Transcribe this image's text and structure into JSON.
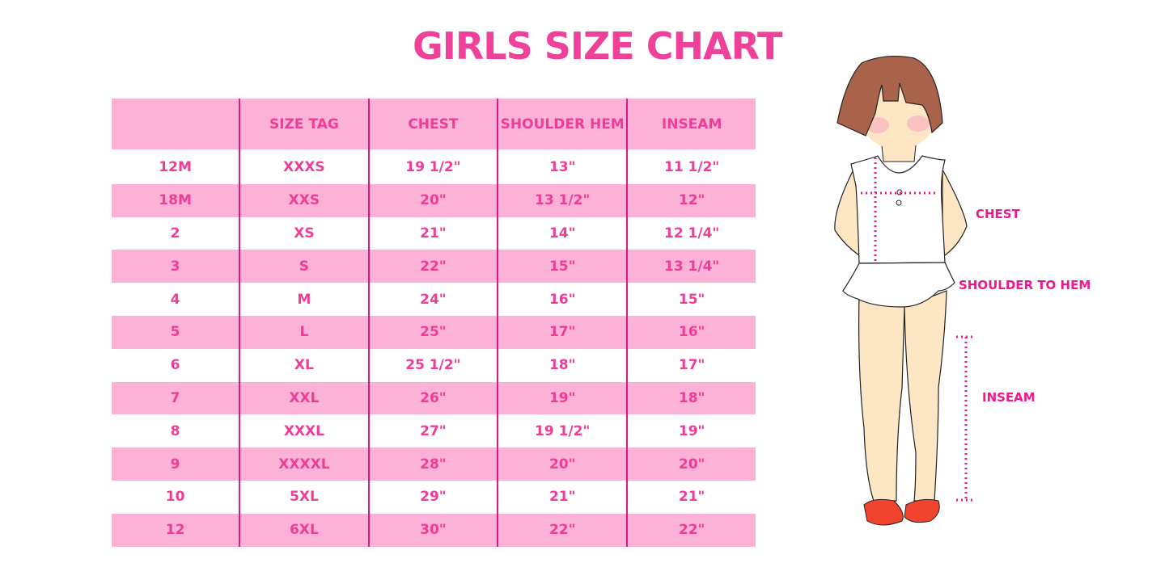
{
  "title": "GIRLS SIZE CHART",
  "table": {
    "headers": [
      "",
      "SIZE TAG",
      "CHEST",
      "SHOULDER HEM",
      "INSEAM"
    ],
    "rows": [
      [
        "12M",
        "XXXS",
        "19 1/2\"",
        "13\"",
        "11 1/2\""
      ],
      [
        "18M",
        "XXS",
        "20\"",
        "13 1/2\"",
        "12\""
      ],
      [
        "2",
        "XS",
        "21\"",
        "14\"",
        "12 1/4\""
      ],
      [
        "3",
        "S",
        "22\"",
        "15\"",
        "13 1/4\""
      ],
      [
        "4",
        "M",
        "24\"",
        "16\"",
        "15\""
      ],
      [
        "5",
        "L",
        "25\"",
        "17\"",
        "16\""
      ],
      [
        "6",
        "XL",
        "25 1/2\"",
        "18\"",
        "17\""
      ],
      [
        "7",
        "XXL",
        "26\"",
        "19\"",
        "18\""
      ],
      [
        "8",
        "XXXL",
        "27\"",
        "19 1/2\"",
        "19\""
      ],
      [
        "9",
        "XXXXL",
        "28\"",
        "20\"",
        "20\""
      ],
      [
        "10",
        "5XL",
        "29\"",
        "21\"",
        "21\""
      ],
      [
        "12",
        "6XL",
        "30\"",
        "22\"",
        "22\""
      ]
    ]
  },
  "diagram": {
    "labels": {
      "chest": "CHEST",
      "shoulder_to_hem": "SHOULDER TO HEM",
      "inseam": "INSEAM"
    }
  },
  "colors": {
    "accent": "#ee3d96",
    "row_fill": "#fcb2d6",
    "divider": "#e0168a",
    "measure_line": "#f0168c"
  }
}
